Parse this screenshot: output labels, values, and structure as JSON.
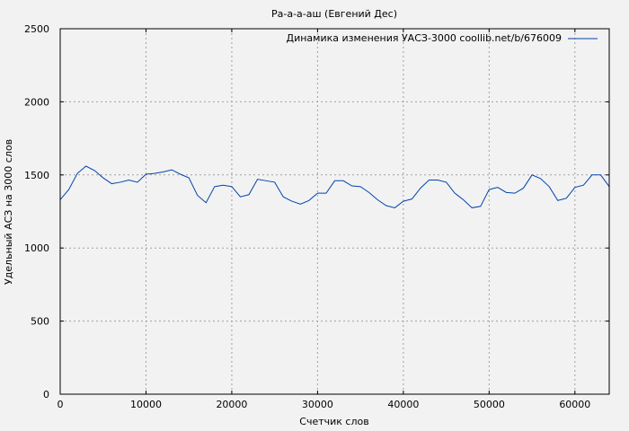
{
  "chart_data": {
    "type": "line",
    "title": "Ра-а-а-аш (Евгений Дес)",
    "xlabel": "Счетчик слов",
    "ylabel": "Удельный АСЗ на 3000 слов",
    "xlim": [
      0,
      64000
    ],
    "ylim": [
      0,
      2500
    ],
    "xticks": [
      0,
      10000,
      20000,
      30000,
      40000,
      50000,
      60000
    ],
    "yticks": [
      0,
      500,
      1000,
      1500,
      2000,
      2500
    ],
    "grid": true,
    "legend_position": "top-right",
    "series": [
      {
        "name": "Динамика изменения УАСЗ-3000 coollib.net/b/676009",
        "color": "#0044aa",
        "x": [
          0,
          1000,
          2000,
          3000,
          4000,
          5000,
          6000,
          7000,
          8000,
          9000,
          10000,
          11000,
          12000,
          13000,
          14000,
          15000,
          16000,
          17000,
          18000,
          19000,
          20000,
          21000,
          22000,
          23000,
          24000,
          25000,
          26000,
          27000,
          28000,
          29000,
          30000,
          31000,
          32000,
          33000,
          34000,
          35000,
          36000,
          37000,
          38000,
          39000,
          40000,
          41000,
          42000,
          43000,
          44000,
          45000,
          46000,
          47000,
          48000,
          49000,
          50000,
          51000,
          52000,
          53000,
          54000,
          55000,
          56000,
          57000,
          58000,
          59000,
          60000,
          61000,
          62000,
          63000,
          64000
        ],
        "y": [
          1330,
          1400,
          1510,
          1560,
          1530,
          1480,
          1440,
          1450,
          1465,
          1450,
          1505,
          1510,
          1520,
          1535,
          1505,
          1480,
          1360,
          1310,
          1420,
          1430,
          1420,
          1350,
          1365,
          1470,
          1460,
          1450,
          1350,
          1320,
          1300,
          1325,
          1375,
          1375,
          1460,
          1460,
          1425,
          1420,
          1380,
          1330,
          1290,
          1275,
          1320,
          1335,
          1410,
          1465,
          1465,
          1450,
          1375,
          1330,
          1275,
          1285,
          1400,
          1415,
          1380,
          1375,
          1410,
          1500,
          1475,
          1420,
          1325,
          1340,
          1415,
          1430,
          1500,
          1500,
          1420
        ]
      }
    ]
  }
}
